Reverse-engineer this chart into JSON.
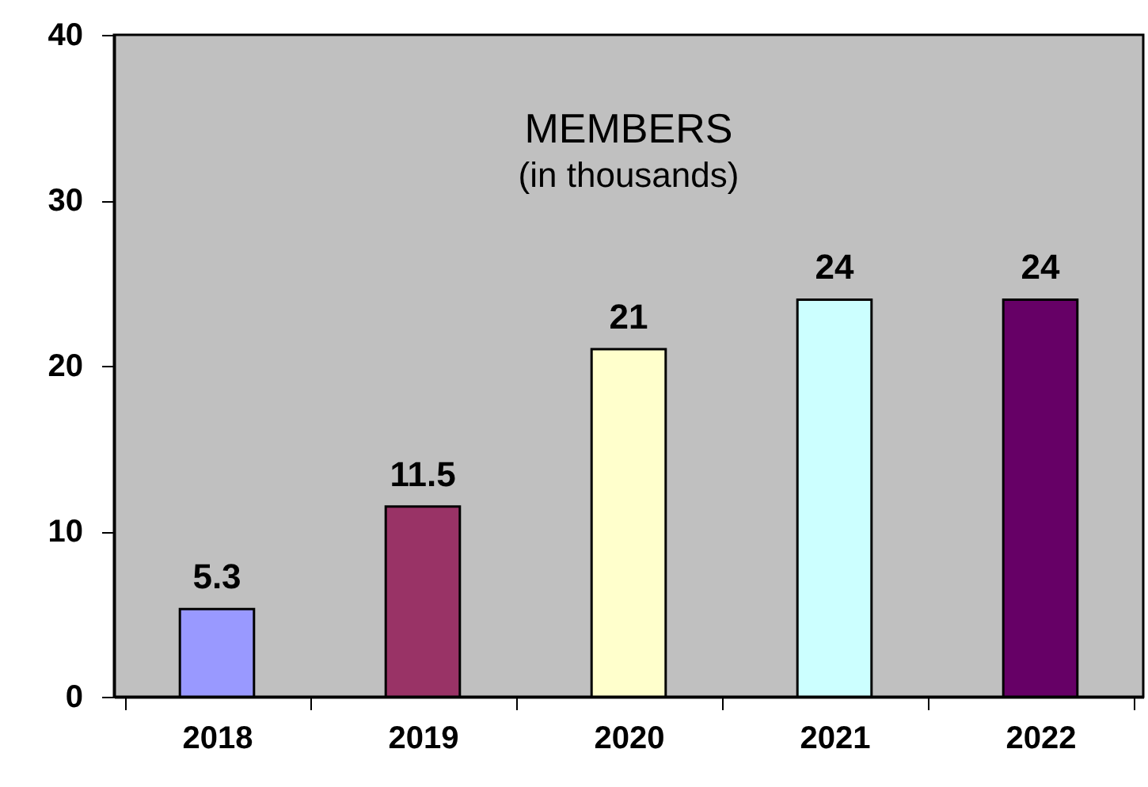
{
  "chart_data": {
    "type": "bar",
    "title": "MEMBERS",
    "subtitle": "(in thousands)",
    "categories": [
      "2018",
      "2019",
      "2020",
      "2021",
      "2022"
    ],
    "values": [
      5.3,
      11.5,
      21,
      24,
      24
    ],
    "colors": [
      "#9999ff",
      "#993366",
      "#ffffcc",
      "#ccffff",
      "#660066"
    ],
    "ylim": [
      0,
      40
    ],
    "yticks": [
      0,
      10,
      20,
      30,
      40
    ],
    "grid": false,
    "legend": false,
    "data_labels": true
  }
}
